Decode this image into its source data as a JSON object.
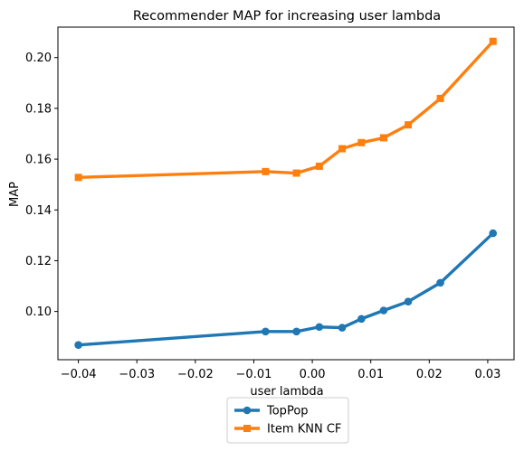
{
  "chart_data": {
    "type": "line",
    "title": "Recommender MAP for increasing user lambda",
    "xlabel": "user lambda",
    "ylabel": "MAP",
    "xlim": [
      -0.0435,
      0.0345
    ],
    "ylim": [
      0.081,
      0.212
    ],
    "xticks": [
      -0.04,
      -0.03,
      -0.02,
      -0.01,
      0.0,
      0.01,
      0.02,
      0.03
    ],
    "xtick_labels": [
      "−0.04",
      "−0.03",
      "−0.02",
      "−0.01",
      "0.00",
      "0.01",
      "0.02",
      "0.03"
    ],
    "yticks": [
      0.1,
      0.12,
      0.14,
      0.16,
      0.18,
      0.2
    ],
    "ytick_labels": [
      "0.10",
      "0.12",
      "0.14",
      "0.16",
      "0.18",
      "0.20"
    ],
    "grid": false,
    "legend_position": "below-center",
    "x": [
      -0.04,
      -0.008,
      -0.0027,
      0.0012,
      0.0051,
      0.0084,
      0.0122,
      0.0164,
      0.0219,
      0.0309
    ],
    "series": [
      {
        "name": "TopPop",
        "marker": "circle",
        "color": "#1f77b4",
        "x": [
          -0.04,
          -0.008,
          -0.0027,
          0.0012,
          0.0051,
          0.0084,
          0.0122,
          0.0164,
          0.0219,
          0.0309
        ],
        "values": [
          0.0868,
          0.0921,
          0.0921,
          0.0939,
          0.0936,
          0.0971,
          0.1004,
          0.1039,
          0.1113,
          0.1308
        ]
      },
      {
        "name": "Item KNN CF",
        "marker": "square",
        "color": "#ff7f0e",
        "x": [
          -0.04,
          -0.008,
          -0.0027,
          0.0012,
          0.0051,
          0.0084,
          0.0122,
          0.0164,
          0.0219,
          0.0309
        ],
        "values": [
          0.1528,
          0.1551,
          0.1545,
          0.1572,
          0.1641,
          0.1665,
          0.1684,
          0.1735,
          0.1839,
          0.2064
        ]
      }
    ]
  }
}
